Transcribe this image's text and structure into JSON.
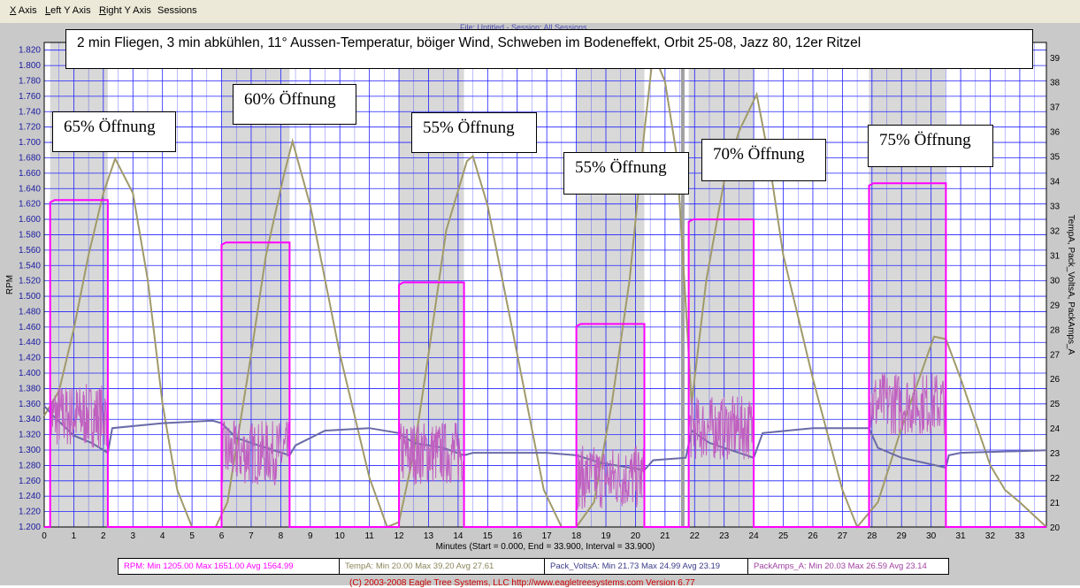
{
  "menu": {
    "items": [
      {
        "hot": "X",
        "rest": " Axis"
      },
      {
        "hot": "L",
        "rest": "eft Y Axis"
      },
      {
        "hot": "R",
        "rest": "ight Y Axis"
      },
      {
        "hot": "",
        "rest": "Sessions"
      }
    ]
  },
  "header": {
    "session_label": "File: Untitled - Session: All Sessions"
  },
  "title": "2 min Fliegen, 3 min abkühlen, 11° Aussen-Temperatur, böiger Wind, Schweben im Bodeneffekt, Orbit 25-08, Jazz 80, 12er Ritzel",
  "annotations": [
    {
      "text": "65% Öffnung"
    },
    {
      "text": "60% Öffnung"
    },
    {
      "text": "55% Öffnung"
    },
    {
      "text": "55% Öffnung"
    },
    {
      "text": "70% Öffnung"
    },
    {
      "text": "75% Öffnung"
    }
  ],
  "legend": {
    "rpm": "RPM:  Min 1205.00   Max 1651.00   Avg 1564.99",
    "temp": "TempA:  Min 20.00   Max 39.20   Avg 27.61",
    "volts": "Pack_VoltsA:  Min 21.73   Max 24.99   Avg 23.19",
    "amps": "PackAmps_A:  Min 20.03   Max 26.59   Avg 23.14"
  },
  "copyright": "(C) 2003-2008 Eagle Tree Systems, LLC     http://www.eagletreesystems.com     Version 6.77",
  "colors": {
    "rpm": "#ff00ff",
    "temp": "#a09a6a",
    "volts": "#6a6aa8",
    "amps": "#c060c0",
    "grid": "#2020ff",
    "plot_bg": "#ffffff",
    "flight_bg": "#d8d8d8",
    "left_tick": "#1a1aa0",
    "right_tick": "#000000"
  },
  "chart_data": {
    "type": "line",
    "xlabel": "Minutes (Start = 0.000,  End = 33.900,  Interval = 33.900)",
    "ylabel": "RPM",
    "y2label": "TempA, Pack_VoltsA, PackAmps_A",
    "xlim": [
      0,
      33.9
    ],
    "ylim": [
      1200,
      1830
    ],
    "y2lim": [
      20,
      39.6
    ],
    "grid": true,
    "x_ticks": [
      0,
      1,
      2,
      3,
      4,
      5,
      6,
      7,
      8,
      9,
      10,
      11,
      12,
      13,
      14,
      15,
      16,
      17,
      18,
      19,
      20,
      21,
      22,
      23,
      24,
      25,
      26,
      27,
      28,
      29,
      30,
      31,
      32,
      33
    ],
    "y_ticks": [
      1200,
      1220,
      1240,
      1260,
      1280,
      1300,
      1320,
      1340,
      1360,
      1380,
      1400,
      1420,
      1440,
      1460,
      1480,
      1500,
      1520,
      1540,
      1560,
      1580,
      1600,
      1620,
      1640,
      1660,
      1680,
      1700,
      1720,
      1740,
      1760,
      1780,
      1800,
      1820
    ],
    "y_tick_labels": [
      "1.200",
      "1.220",
      "1.240",
      "1.260",
      "1.280",
      "1.300",
      "1.320",
      "1.340",
      "1.360",
      "1.380",
      "1.400",
      "1.420",
      "1.440",
      "1.460",
      "1.480",
      "1.500",
      "1.520",
      "1.540",
      "1.560",
      "1.580",
      "1.600",
      "1.620",
      "1.640",
      "1.660",
      "1.680",
      "1.700",
      "1.720",
      "1.740",
      "1.760",
      "1.780",
      "1.800",
      "1.820"
    ],
    "y2_ticks": [
      20,
      21,
      22,
      23,
      24,
      25,
      26,
      27,
      28,
      29,
      30,
      31,
      32,
      33,
      34,
      35,
      36,
      37,
      38,
      39
    ],
    "flights": [
      {
        "start": 0.2,
        "end": 2.15,
        "rpm": 1625,
        "amps_mid": 24.5,
        "volts_start": 24.7,
        "volts_end": 23.0
      },
      {
        "start": 6.0,
        "end": 8.3,
        "rpm": 1570,
        "amps_mid": 23.0,
        "volts_start": 24.3,
        "volts_end": 22.8
      },
      {
        "start": 12.0,
        "end": 14.2,
        "rpm": 1518,
        "amps_mid": 23.0,
        "volts_start": 23.6,
        "volts_end": 22.5
      },
      {
        "start": 18.0,
        "end": 20.3,
        "rpm": 1464,
        "amps_mid": 22.0,
        "volts_start": 22.8,
        "volts_end": 22.2
      },
      {
        "start": 21.8,
        "end": 24.0,
        "rpm": 1600,
        "amps_mid": 24.0,
        "volts_start": 23.8,
        "volts_end": 22.7
      },
      {
        "start": 27.9,
        "end": 30.5,
        "rpm": 1647,
        "amps_mid": 25.0,
        "volts_start": 23.5,
        "volts_end": 22.3
      }
    ],
    "series": [
      {
        "name": "TempA",
        "points": [
          [
            0,
            24.5
          ],
          [
            0.5,
            25.5
          ],
          [
            1,
            28
          ],
          [
            1.5,
            31
          ],
          [
            2,
            33.5
          ],
          [
            2.4,
            34.9
          ],
          [
            3,
            33.5
          ],
          [
            3.5,
            30
          ],
          [
            4,
            25
          ],
          [
            4.5,
            21.5
          ],
          [
            5,
            20
          ],
          [
            5.8,
            20
          ],
          [
            6.2,
            21
          ],
          [
            7,
            27
          ],
          [
            7.5,
            31
          ],
          [
            8.1,
            34.2
          ],
          [
            8.4,
            35.6
          ],
          [
            9,
            33
          ],
          [
            10,
            27
          ],
          [
            11,
            22
          ],
          [
            11.6,
            20
          ],
          [
            12,
            20.2
          ],
          [
            12.5,
            23
          ],
          [
            13,
            27
          ],
          [
            13.6,
            32
          ],
          [
            14.3,
            34.8
          ],
          [
            14.5,
            35
          ],
          [
            15,
            33
          ],
          [
            16,
            27
          ],
          [
            16.9,
            21.5
          ],
          [
            17.5,
            20
          ],
          [
            18,
            20
          ],
          [
            18.6,
            21
          ],
          [
            19.2,
            25
          ],
          [
            19.8,
            30
          ],
          [
            20.3,
            36
          ],
          [
            20.6,
            39.2
          ],
          [
            21,
            38
          ],
          [
            21.4,
            35
          ],
          [
            21.7,
            29
          ],
          [
            21.9,
            25
          ],
          [
            22.4,
            30
          ],
          [
            23,
            34
          ],
          [
            23.5,
            36
          ],
          [
            24.1,
            37.5
          ],
          [
            24.5,
            35
          ],
          [
            25,
            31
          ],
          [
            26,
            26
          ],
          [
            27,
            21.5
          ],
          [
            27.5,
            20
          ],
          [
            28.2,
            21
          ],
          [
            29,
            24
          ],
          [
            30.1,
            27.7
          ],
          [
            30.5,
            27.6
          ],
          [
            31,
            26
          ],
          [
            32,
            22.5
          ],
          [
            32.5,
            21.5
          ],
          [
            33,
            21
          ],
          [
            33.9,
            20
          ]
        ]
      },
      {
        "name": "Pack_VoltsA",
        "points": [
          [
            0,
            24.9
          ],
          [
            0.3,
            24.5
          ],
          [
            1,
            23.7
          ],
          [
            1.6,
            23.4
          ],
          [
            2.15,
            23.0
          ],
          [
            2.3,
            24.0
          ],
          [
            4,
            24.2
          ],
          [
            5.7,
            24.3
          ],
          [
            6,
            24.2
          ],
          [
            6.5,
            23.6
          ],
          [
            7.5,
            23.2
          ],
          [
            8.3,
            22.9
          ],
          [
            8.5,
            23.3
          ],
          [
            9.5,
            23.9
          ],
          [
            11,
            24.0
          ],
          [
            12,
            23.8
          ],
          [
            12.5,
            23.4
          ],
          [
            13.5,
            23.2
          ],
          [
            14.2,
            22.9
          ],
          [
            14.5,
            23.0
          ],
          [
            17,
            23.0
          ],
          [
            18,
            22.9
          ],
          [
            18.8,
            22.6
          ],
          [
            20.3,
            22.3
          ],
          [
            20.6,
            22.7
          ],
          [
            21.7,
            22.8
          ],
          [
            21.9,
            23.9
          ],
          [
            22.5,
            23.4
          ],
          [
            23.5,
            23.0
          ],
          [
            24.0,
            22.8
          ],
          [
            24.3,
            23.8
          ],
          [
            26,
            24.0
          ],
          [
            27.9,
            24.0
          ],
          [
            28.2,
            23.2
          ],
          [
            29,
            22.8
          ],
          [
            30.5,
            22.4
          ],
          [
            30.6,
            22.9
          ],
          [
            31,
            23.0
          ],
          [
            33.9,
            23.1
          ]
        ]
      }
    ]
  }
}
